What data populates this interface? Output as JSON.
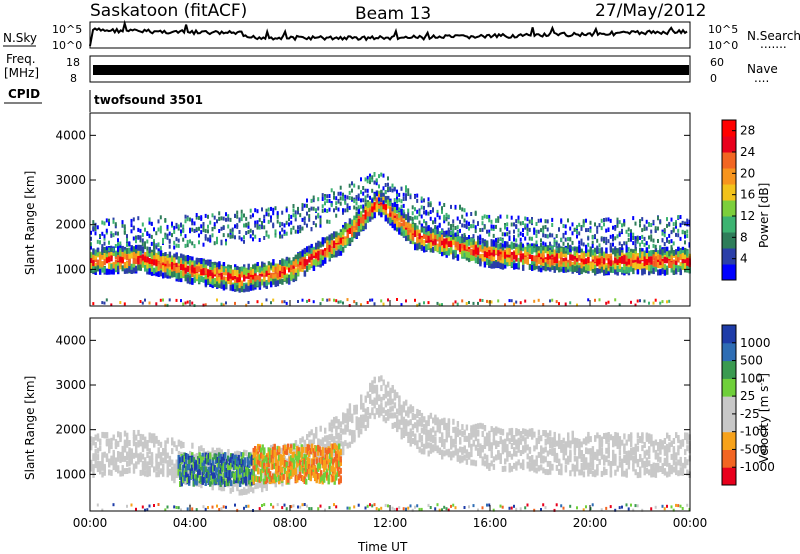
{
  "header": {
    "station": "Saskatoon (fitACF)",
    "beam": "Beam 13",
    "date": "27/May/2012"
  },
  "panels": {
    "nsky": {
      "left_label": "N.Sky",
      "ticks_left": [
        "10^5",
        "10^0"
      ],
      "ticks_right": [
        "10^5",
        "10^0"
      ],
      "right_label": "N.Search",
      "right_dots": "......."
    },
    "freq": {
      "left_label_1": "Freq.",
      "left_label_2": "[MHz]",
      "ticks_left": [
        "18",
        "8"
      ],
      "ticks_right": [
        "60",
        "0"
      ],
      "right_label": "Nave",
      "right_dots": "....",
      "cpid_label": "CPID"
    },
    "cpid": {
      "text": "twofsound 3501"
    }
  },
  "chart_data": [
    {
      "type": "heatmap",
      "title": "",
      "xlabel": "Time UT",
      "ylabel": "Slant Range [km]",
      "xlim": [
        "00:00",
        "24:00"
      ],
      "ylim": [
        180,
        4500
      ],
      "x_ticks": [
        "00:00",
        "04:00",
        "08:00",
        "12:00",
        "16:00",
        "20:00",
        "00:00"
      ],
      "y_ticks": [
        1000,
        2000,
        3000,
        4000
      ],
      "colorbar": {
        "label": "Power [dB]",
        "ticks": [
          4,
          8,
          12,
          16,
          20,
          24,
          28
        ],
        "range": [
          0,
          30
        ],
        "colors": [
          "#0000ff",
          "#2b3fa8",
          "#2e7d5a",
          "#3cb371",
          "#7ccf3c",
          "#f2c21b",
          "#f7941d",
          "#f26522",
          "#e8001c",
          "#ff0000"
        ]
      },
      "bands": [
        {
          "name": "main echo band",
          "points": [
            [
              0,
              1250
            ],
            [
              2,
              1300
            ],
            [
              4,
              1050
            ],
            [
              6,
              850
            ],
            [
              8,
              1050
            ],
            [
              10,
              1700
            ],
            [
              11.5,
              2600
            ],
            [
              13,
              1800
            ],
            [
              16,
              1400
            ],
            [
              20,
              1250
            ],
            [
              24,
              1250
            ]
          ],
          "power_dB": 24
        },
        {
          "name": "upper scatter",
          "points": [
            [
              0,
              1800
            ],
            [
              4,
              1900
            ],
            [
              8,
              2100
            ],
            [
              11.5,
              2900
            ],
            [
              13,
              2400
            ],
            [
              16,
              1900
            ],
            [
              20,
              1800
            ],
            [
              24,
              1900
            ]
          ],
          "power_dB": 10
        }
      ]
    },
    {
      "type": "heatmap",
      "title": "",
      "xlabel": "Time UT",
      "ylabel": "Slant Range [km]",
      "xlim": [
        "00:00",
        "24:00"
      ],
      "ylim": [
        180,
        4500
      ],
      "x_ticks": [
        "00:00",
        "04:00",
        "08:00",
        "12:00",
        "16:00",
        "20:00",
        "00:00"
      ],
      "y_ticks": [
        1000,
        2000,
        3000,
        4000
      ],
      "colorbar": {
        "label": "Velocity [m s^-1]",
        "label_main": "Velocity [m s",
        "label_sup": "-1",
        "label_end": "]",
        "ticks": [
          1000,
          500,
          100,
          25,
          -25,
          -100,
          -500,
          -1000
        ],
        "colors": [
          "#1e3ca8",
          "#2e6db4",
          "#3a9a50",
          "#6fcf3a",
          "#c8c8c8",
          "#c8c8c8",
          "#f7a21b",
          "#f26522",
          "#e8001c"
        ]
      },
      "features": [
        {
          "name": "positive velocity patch",
          "time_range": [
            "03:30",
            "06:30"
          ],
          "range_km": [
            850,
            1500
          ],
          "velocity": 700
        },
        {
          "name": "negative velocity patch",
          "time_range": [
            "06:30",
            "10:00"
          ],
          "range_km": [
            900,
            1700
          ],
          "velocity": -400
        },
        {
          "name": "ground scatter",
          "time_range": [
            "00:00",
            "24:00"
          ],
          "range_km": [
            1000,
            2600
          ],
          "velocity": 0
        }
      ]
    }
  ]
}
